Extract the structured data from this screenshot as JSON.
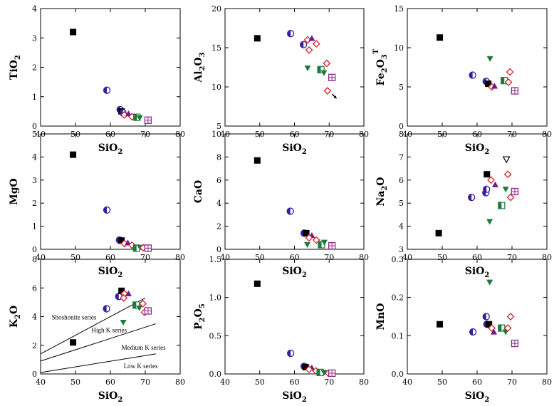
{
  "chart_data": [
    {
      "id": "tio2",
      "type": "scatter",
      "ylabel": "TiO2",
      "ylabel_main": "TiO",
      "ylabel_sub": "2",
      "ylabel_sup": "",
      "ylim": [
        0,
        4
      ],
      "yticks": [
        "0",
        "1",
        "2",
        "3",
        "4"
      ],
      "xlim": [
        40,
        80
      ],
      "xticks": [
        "40",
        "50",
        "60",
        "70",
        "80"
      ],
      "xlabel": "SiO2",
      "xlabel_main": "SiO",
      "xlabel_sub": "2",
      "points": [
        {
          "m": "square",
          "x": 49.3,
          "y": 3.2
        },
        {
          "m": "halfcircle",
          "x": 59.0,
          "y": 1.22
        },
        {
          "m": "halfcircle",
          "x": 62.8,
          "y": 0.56
        },
        {
          "m": "square",
          "x": 63.2,
          "y": 0.5
        },
        {
          "m": "halfcircle",
          "x": 63.6,
          "y": 0.45
        },
        {
          "m": "diamond",
          "x": 64.0,
          "y": 0.38
        },
        {
          "m": "triangle",
          "x": 65.2,
          "y": 0.42
        },
        {
          "m": "diamond",
          "x": 66.2,
          "y": 0.32
        },
        {
          "m": "squarehalf",
          "x": 67.6,
          "y": 0.3
        },
        {
          "m": "invtri",
          "x": 68.4,
          "y": 0.28
        },
        {
          "m": "squareopen",
          "x": 70.8,
          "y": 0.2
        }
      ],
      "annotations": []
    },
    {
      "id": "al2o3",
      "type": "scatter",
      "ylabel": "Al2O3",
      "ylabel_main": "Al",
      "ylabel_sub": "2",
      "ylabel_main2": "O",
      "ylabel_sub2": "3",
      "ylim": [
        5,
        20
      ],
      "yticks": [
        "5",
        "10",
        "15",
        "20"
      ],
      "xlim": [
        40,
        80
      ],
      "xticks": [
        "40",
        "50",
        "60",
        "70",
        "80"
      ],
      "xlabel": "SiO2",
      "xlabel_main": "SiO",
      "xlabel_sub": "2",
      "points": [
        {
          "m": "square",
          "x": 49.3,
          "y": 16.2
        },
        {
          "m": "halfcircle",
          "x": 58.9,
          "y": 16.8
        },
        {
          "m": "halfcircle",
          "x": 62.6,
          "y": 15.4
        },
        {
          "m": "diamond",
          "x": 63.8,
          "y": 16.0
        },
        {
          "m": "triangle",
          "x": 65.0,
          "y": 16.2
        },
        {
          "m": "diamond",
          "x": 66.3,
          "y": 15.5
        },
        {
          "m": "diamond",
          "x": 64.2,
          "y": 14.7
        },
        {
          "m": "invtri",
          "x": 63.8,
          "y": 12.4
        },
        {
          "m": "squarehalf",
          "x": 67.6,
          "y": 12.2
        },
        {
          "m": "invtri",
          "x": 68.5,
          "y": 11.8
        },
        {
          "m": "diamond",
          "x": 69.3,
          "y": 13.0
        },
        {
          "m": "squareopen",
          "x": 70.8,
          "y": 11.2
        },
        {
          "m": "diamond",
          "x": 69.5,
          "y": 9.5
        },
        {
          "m": "star",
          "x": 71.5,
          "y": 8.8
        }
      ],
      "annotations": []
    },
    {
      "id": "fe2o3",
      "type": "scatter",
      "ylabel": "Fe2O3T",
      "ylabel_main": "Fe",
      "ylabel_sub": "2",
      "ylabel_main2": "O",
      "ylabel_sub2": "3",
      "ylabel_sup": "T",
      "ylim": [
        0,
        15
      ],
      "yticks": [
        "0",
        "5",
        "10",
        "15"
      ],
      "xlim": [
        40,
        80
      ],
      "xticks": [
        "40",
        "50",
        "60",
        "70",
        "80"
      ],
      "xlabel": "SiO2",
      "xlabel_main": "SiO",
      "xlabel_sub": "2",
      "points": [
        {
          "m": "square",
          "x": 49.3,
          "y": 11.3
        },
        {
          "m": "halfcircle",
          "x": 58.7,
          "y": 6.5
        },
        {
          "m": "halfcircle",
          "x": 62.6,
          "y": 5.7
        },
        {
          "m": "square",
          "x": 63.2,
          "y": 5.4
        },
        {
          "m": "diamond",
          "x": 64.2,
          "y": 5.0
        },
        {
          "m": "triangle",
          "x": 65.0,
          "y": 5.1
        },
        {
          "m": "invtri",
          "x": 63.7,
          "y": 8.6
        },
        {
          "m": "squarehalf",
          "x": 67.8,
          "y": 5.8
        },
        {
          "m": "diamond",
          "x": 69.0,
          "y": 5.6
        },
        {
          "m": "diamond",
          "x": 69.4,
          "y": 6.9
        },
        {
          "m": "squareopen",
          "x": 70.8,
          "y": 4.5
        }
      ],
      "annotations": []
    },
    {
      "id": "mgo",
      "type": "scatter",
      "ylabel": "MgO",
      "ylabel_main": "MgO",
      "ylim": [
        0,
        5
      ],
      "yticks": [
        "0",
        "1",
        "2",
        "3",
        "4",
        "5"
      ],
      "xlim": [
        40,
        80
      ],
      "xticks": [
        "40",
        "50",
        "60",
        "70",
        "80"
      ],
      "xlabel": "SiO2",
      "xlabel_main": "SiO",
      "xlabel_sub": "2",
      "points": [
        {
          "m": "square",
          "x": 49.3,
          "y": 4.1
        },
        {
          "m": "halfcircle",
          "x": 59.0,
          "y": 1.7
        },
        {
          "m": "halfcircle",
          "x": 62.6,
          "y": 0.4
        },
        {
          "m": "square",
          "x": 63.2,
          "y": 0.38
        },
        {
          "m": "diamond",
          "x": 64.0,
          "y": 0.25
        },
        {
          "m": "triangle",
          "x": 65.0,
          "y": 0.28
        },
        {
          "m": "diamond",
          "x": 66.2,
          "y": 0.18
        },
        {
          "m": "squarehalf",
          "x": 67.5,
          "y": 0.05
        },
        {
          "m": "invtri",
          "x": 68.5,
          "y": 0.08
        },
        {
          "m": "diamond",
          "x": 69.4,
          "y": 0.07
        },
        {
          "m": "squareopen",
          "x": 70.8,
          "y": 0.05
        }
      ],
      "annotations": []
    },
    {
      "id": "cao",
      "type": "scatter",
      "ylabel": "CaO",
      "ylabel_main": "CaO",
      "ylim": [
        0,
        10
      ],
      "yticks": [
        "0",
        "2",
        "4",
        "6",
        "8",
        "10"
      ],
      "xlim": [
        40,
        80
      ],
      "xticks": [
        "40",
        "50",
        "60",
        "70",
        "80"
      ],
      "xlabel": "SiO2",
      "xlabel_main": "SiO",
      "xlabel_sub": "2",
      "points": [
        {
          "m": "square",
          "x": 49.3,
          "y": 7.7
        },
        {
          "m": "halfcircle",
          "x": 58.8,
          "y": 3.3
        },
        {
          "m": "halfcircle",
          "x": 62.8,
          "y": 1.4
        },
        {
          "m": "square",
          "x": 63.4,
          "y": 1.4
        },
        {
          "m": "triangle",
          "x": 65.0,
          "y": 1.2
        },
        {
          "m": "diamond",
          "x": 64.2,
          "y": 1.0
        },
        {
          "m": "diamond",
          "x": 66.3,
          "y": 0.8
        },
        {
          "m": "invtri",
          "x": 63.7,
          "y": 0.4
        },
        {
          "m": "squarehalf",
          "x": 67.8,
          "y": 0.4
        },
        {
          "m": "invtri",
          "x": 68.6,
          "y": 0.6
        },
        {
          "m": "squareopen",
          "x": 70.8,
          "y": 0.3
        }
      ],
      "annotations": []
    },
    {
      "id": "na2o",
      "type": "scatter",
      "ylabel": "Na2O",
      "ylabel_main": "Na",
      "ylabel_sub": "2",
      "ylabel_main2": "O",
      "ylim": [
        3,
        8
      ],
      "yticks": [
        "3",
        "4",
        "5",
        "6",
        "7",
        "8"
      ],
      "xlim": [
        40,
        80
      ],
      "xticks": [
        "40",
        "50",
        "60",
        "70",
        "80"
      ],
      "xlabel": "SiO2",
      "xlabel_main": "SiO",
      "xlabel_sub": "2",
      "points": [
        {
          "m": "square",
          "x": 49.0,
          "y": 3.7
        },
        {
          "m": "halfcircle",
          "x": 58.4,
          "y": 5.25
        },
        {
          "m": "halfcircle",
          "x": 62.5,
          "y": 5.45
        },
        {
          "m": "halfcircle",
          "x": 62.7,
          "y": 5.6
        },
        {
          "m": "square",
          "x": 62.8,
          "y": 6.25
        },
        {
          "m": "diamond",
          "x": 64.0,
          "y": 6.0
        },
        {
          "m": "triangle",
          "x": 65.2,
          "y": 5.8
        },
        {
          "m": "invtri",
          "x": 63.6,
          "y": 4.2
        },
        {
          "m": "squarehalf",
          "x": 67.0,
          "y": 4.9
        },
        {
          "m": "invtri",
          "x": 68.2,
          "y": 5.6
        },
        {
          "m": "invtriopen",
          "x": 68.4,
          "y": 6.9
        },
        {
          "m": "diamond",
          "x": 68.8,
          "y": 6.25
        },
        {
          "m": "diamond",
          "x": 69.6,
          "y": 5.25
        },
        {
          "m": "squareopen",
          "x": 70.8,
          "y": 5.5
        }
      ],
      "annotations": []
    },
    {
      "id": "k2o",
      "type": "scatter",
      "ylabel": "K2O",
      "ylabel_main": "K",
      "ylabel_sub": "2",
      "ylabel_main2": "O",
      "ylim": [
        0,
        8
      ],
      "yticks": [
        "0",
        "2",
        "4",
        "6",
        "8"
      ],
      "xlim": [
        40,
        80
      ],
      "xticks": [
        "40",
        "50",
        "60",
        "70",
        "80"
      ],
      "xlabel": "SiO2",
      "xlabel_main": "SiO",
      "xlabel_sub": "2",
      "points": [
        {
          "m": "square",
          "x": 49.3,
          "y": 2.2
        },
        {
          "m": "halfcircle",
          "x": 58.9,
          "y": 4.55
        },
        {
          "m": "halfcircle",
          "x": 62.4,
          "y": 5.4
        },
        {
          "m": "square",
          "x": 63.2,
          "y": 5.8
        },
        {
          "m": "diamond",
          "x": 64.0,
          "y": 5.6
        },
        {
          "m": "triangle",
          "x": 65.2,
          "y": 5.6
        },
        {
          "m": "diamond",
          "x": 63.8,
          "y": 5.3
        },
        {
          "m": "invtri",
          "x": 63.7,
          "y": 3.6
        },
        {
          "m": "squarehalf",
          "x": 67.4,
          "y": 4.8
        },
        {
          "m": "invtri",
          "x": 68.3,
          "y": 4.6
        },
        {
          "m": "diamond",
          "x": 69.3,
          "y": 4.9
        },
        {
          "m": "diamond",
          "x": 69.8,
          "y": 4.3
        },
        {
          "m": "squareopen",
          "x": 70.8,
          "y": 4.4
        }
      ],
      "lines": [
        {
          "x1": 40,
          "y1": 1.4,
          "x2": 70,
          "y2": 5.3
        },
        {
          "x1": 40,
          "y1": 0.9,
          "x2": 73,
          "y2": 3.5
        },
        {
          "x1": 40,
          "y1": 0.1,
          "x2": 73,
          "y2": 1.4
        }
      ],
      "annotations": [
        {
          "text": "Shoshonite series",
          "x": 43.2,
          "y": 3.8
        },
        {
          "text": "High K series",
          "x": 54.6,
          "y": 2.9
        },
        {
          "text": "Medium K series",
          "x": 63.2,
          "y": 1.7
        },
        {
          "text": "Low K series",
          "x": 63.8,
          "y": 0.4
        }
      ]
    },
    {
      "id": "p2o5",
      "type": "scatter",
      "ylabel": "P2O5",
      "ylabel_main": "P",
      "ylabel_sub": "2",
      "ylabel_main2": "O",
      "ylabel_sub2": "5",
      "ylim": [
        0,
        1.5
      ],
      "yticks": [
        "0.0",
        "0.5",
        "1.0",
        "1.5"
      ],
      "xlim": [
        40,
        80
      ],
      "xticks": [
        "40",
        "50",
        "60",
        "70",
        "80"
      ],
      "xlabel": "SiO2",
      "xlabel_main": "SiO",
      "xlabel_sub": "2",
      "points": [
        {
          "m": "square",
          "x": 49.3,
          "y": 1.18
        },
        {
          "m": "halfcircle",
          "x": 58.9,
          "y": 0.27
        },
        {
          "m": "halfcircle",
          "x": 62.8,
          "y": 0.1
        },
        {
          "m": "square",
          "x": 63.2,
          "y": 0.09
        },
        {
          "m": "triangle",
          "x": 65.0,
          "y": 0.08
        },
        {
          "m": "diamond",
          "x": 64.2,
          "y": 0.06
        },
        {
          "m": "diamond",
          "x": 66.2,
          "y": 0.04
        },
        {
          "m": "squarehalf",
          "x": 67.4,
          "y": 0.02
        },
        {
          "m": "invtri",
          "x": 68.5,
          "y": 0.02
        },
        {
          "m": "diamond",
          "x": 69.8,
          "y": 0.01
        },
        {
          "m": "squareopen",
          "x": 70.8,
          "y": 0.01
        }
      ],
      "annotations": []
    },
    {
      "id": "mno",
      "type": "scatter",
      "ylabel": "MnO",
      "ylabel_main": "MnO",
      "ylim": [
        0,
        0.3
      ],
      "yticks": [
        "0.0",
        "0.1",
        "0.2",
        "0.3"
      ],
      "xlim": [
        40,
        80
      ],
      "xticks": [
        "40",
        "50",
        "60",
        "70",
        "80"
      ],
      "xlabel": "SiO2",
      "xlabel_main": "SiO",
      "xlabel_sub": "2",
      "points": [
        {
          "m": "square",
          "x": 49.3,
          "y": 0.13
        },
        {
          "m": "halfcircle",
          "x": 58.8,
          "y": 0.11
        },
        {
          "m": "halfcircle",
          "x": 62.6,
          "y": 0.15
        },
        {
          "m": "halfcircle",
          "x": 62.8,
          "y": 0.13
        },
        {
          "m": "square",
          "x": 63.4,
          "y": 0.13
        },
        {
          "m": "invtri",
          "x": 63.6,
          "y": 0.24
        },
        {
          "m": "diamond",
          "x": 64.2,
          "y": 0.12
        },
        {
          "m": "triangle",
          "x": 64.8,
          "y": 0.11
        },
        {
          "m": "squarehalf",
          "x": 67.0,
          "y": 0.12
        },
        {
          "m": "invtri",
          "x": 68.2,
          "y": 0.11
        },
        {
          "m": "diamond",
          "x": 68.8,
          "y": 0.12
        },
        {
          "m": "diamond",
          "x": 69.6,
          "y": 0.15
        },
        {
          "m": "squareopen",
          "x": 70.8,
          "y": 0.08
        }
      ],
      "annotations": []
    }
  ],
  "colors": {
    "square": "#000000",
    "halfcircle": "#3a1ca0",
    "squarefill": "#8a2a8a",
    "diamond": "#d4202a",
    "triangle": "#6a1a8a",
    "invtri": "#1e7a3a",
    "squarehalf": "#1e7a3a",
    "squareopen": "#8a2a8a",
    "black": "#000000"
  }
}
